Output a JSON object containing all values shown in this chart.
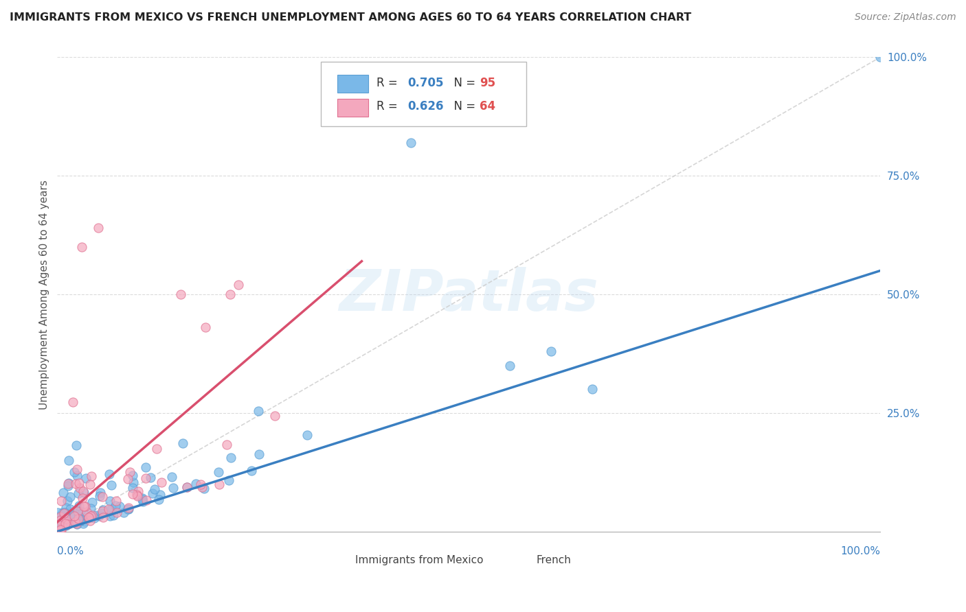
{
  "title": "IMMIGRANTS FROM MEXICO VS FRENCH UNEMPLOYMENT AMONG AGES 60 TO 64 YEARS CORRELATION CHART",
  "source": "Source: ZipAtlas.com",
  "ylabel": "Unemployment Among Ages 60 to 64 years",
  "xlim": [
    0,
    1
  ],
  "ylim": [
    0,
    1
  ],
  "watermark": "ZIPatlas",
  "blue_R": 0.705,
  "blue_N": 95,
  "pink_R": 0.626,
  "pink_N": 64,
  "blue_scatter_color": "#7ab8e8",
  "blue_edge_color": "#5a9fd4",
  "pink_scatter_color": "#f4a8be",
  "pink_edge_color": "#e07090",
  "blue_line_color": "#3a7fc1",
  "pink_line_color": "#d94f6e",
  "diag_line_color": "#cccccc",
  "background_color": "#ffffff",
  "grid_color": "#cccccc",
  "title_color": "#222222",
  "tick_color": "#3a7fc1",
  "legend_box_color": "#f0f0f0",
  "legend_box_edge": "#cccccc",
  "blue_line_x": [
    0.0,
    1.0
  ],
  "blue_line_y": [
    0.0,
    0.55
  ],
  "pink_line_x": [
    0.0,
    0.37
  ],
  "pink_line_y": [
    0.02,
    0.57
  ]
}
